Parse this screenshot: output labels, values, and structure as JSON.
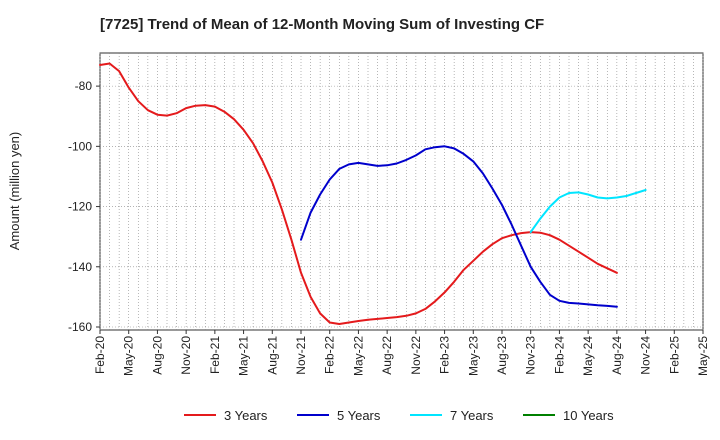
{
  "chart_data": {
    "type": "line",
    "title": "[7725]  Trend of Mean of 12-Month Moving Sum of Investing CF",
    "xlabel": "",
    "ylabel": "Amount (million yen)",
    "ylim": [
      -161,
      -69
    ],
    "yticks": [
      -80,
      -100,
      -120,
      -140,
      -160
    ],
    "x_tick_labels": [
      "Feb-20",
      "May-20",
      "Aug-20",
      "Nov-20",
      "Feb-21",
      "May-21",
      "Aug-21",
      "Nov-21",
      "Feb-22",
      "May-22",
      "Aug-22",
      "Nov-22",
      "Feb-23",
      "May-23",
      "Aug-23",
      "Nov-23",
      "Feb-24",
      "May-24",
      "Aug-24",
      "Nov-24",
      "Feb-25",
      "May-25"
    ],
    "x_start": "Feb-20",
    "x_end": "May-25",
    "grid": true,
    "legend_position": "bottom",
    "series": [
      {
        "name": "3 Years",
        "color": "#e41a1c",
        "start_index": 0,
        "values": [
          -73,
          -72.5,
          -75,
          -80.5,
          -85,
          -88,
          -89.5,
          -89.8,
          -89,
          -87.3,
          -86.5,
          -86.3,
          -86.8,
          -88.5,
          -91,
          -94.5,
          -99,
          -105,
          -112,
          -121,
          -131,
          -142,
          -150,
          -155.5,
          -158.5,
          -159,
          -158.5,
          -158,
          -157.6,
          -157.3,
          -157,
          -156.7,
          -156.3,
          -155.5,
          -154,
          -151.5,
          -148.5,
          -145,
          -141,
          -138,
          -135,
          -132.5,
          -130.5,
          -129.5,
          -128.8,
          -128.5,
          -128.7,
          -129.5,
          -131,
          -133,
          -135,
          -137,
          -139,
          -140.5,
          -142
        ]
      },
      {
        "name": "5 Years",
        "color": "#0000cc",
        "start_index": 21,
        "values": [
          -131,
          -122,
          -116,
          -111,
          -107.5,
          -106,
          -105.5,
          -106,
          -106.5,
          -106.3,
          -105.7,
          -104.5,
          -103,
          -101,
          -100.3,
          -100,
          -100.7,
          -102.5,
          -105,
          -109,
          -114,
          -119.5,
          -126,
          -133,
          -140,
          -145,
          -149.3,
          -151.3,
          -152,
          -152.2,
          -152.5,
          -152.8,
          -153,
          -153.3
        ]
      },
      {
        "name": "7 Years",
        "color": "#00e5ff",
        "start_index": 45,
        "values": [
          -128.5,
          -124,
          -120,
          -117,
          -115.5,
          -115.3,
          -116,
          -117,
          -117.3,
          -117,
          -116.5,
          -115.5,
          -114.5
        ]
      },
      {
        "name": "10 Years",
        "color": "#008000",
        "start_index": 0,
        "values": []
      }
    ]
  }
}
